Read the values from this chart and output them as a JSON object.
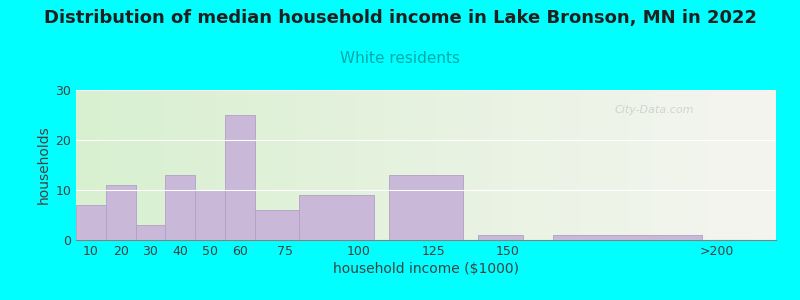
{
  "title": "Distribution of median household income in Lake Bronson, MN in 2022",
  "subtitle": "White residents",
  "xlabel": "household income ($1000)",
  "ylabel": "households",
  "bg_color": "#00FFFF",
  "bar_color": "#c9b8d8",
  "bar_edge_color": "#b0a0c8",
  "categories": [
    "10",
    "20",
    "30",
    "40",
    "50",
    "60",
    "75",
    "100",
    "125",
    "150",
    ">200"
  ],
  "values": [
    7,
    11,
    3,
    13,
    10,
    25,
    6,
    9,
    13,
    1,
    1
  ],
  "bar_left_edges": [
    5,
    15,
    25,
    35,
    45,
    55,
    65,
    80,
    110,
    140,
    165
  ],
  "bar_widths": [
    10,
    10,
    10,
    10,
    10,
    10,
    15,
    25,
    25,
    15,
    50
  ],
  "tick_positions": [
    10,
    20,
    30,
    40,
    50,
    60,
    75,
    100,
    125,
    150,
    220
  ],
  "xlim": [
    5,
    240
  ],
  "ylim": [
    0,
    30
  ],
  "yticks": [
    0,
    10,
    20,
    30
  ],
  "title_fontsize": 13,
  "subtitle_fontsize": 11,
  "subtitle_color": "#00AAAA",
  "watermark": "City-Data.com"
}
